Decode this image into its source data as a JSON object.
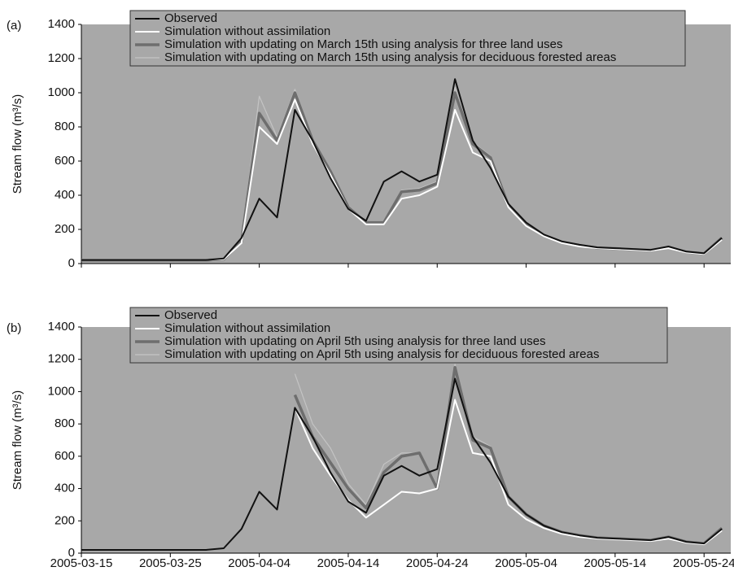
{
  "chart_data": [
    {
      "type": "line",
      "panel_label": "(a)",
      "y_label": "Stream flow (m³/s)",
      "x": [
        "2005-03-15",
        "2005-03-17",
        "2005-03-19",
        "2005-03-21",
        "2005-03-23",
        "2005-03-25",
        "2005-03-27",
        "2005-03-29",
        "2005-03-31",
        "2005-04-02",
        "2005-04-04",
        "2005-04-06",
        "2005-04-08",
        "2005-04-10",
        "2005-04-12",
        "2005-04-14",
        "2005-04-16",
        "2005-04-18",
        "2005-04-20",
        "2005-04-22",
        "2005-04-24",
        "2005-04-26",
        "2005-04-28",
        "2005-04-30",
        "2005-05-02",
        "2005-05-04",
        "2005-05-06",
        "2005-05-08",
        "2005-05-10",
        "2005-05-12",
        "2005-05-14",
        "2005-05-16",
        "2005-05-18",
        "2005-05-20",
        "2005-05-22",
        "2005-05-24",
        "2005-05-26"
      ],
      "xlim": [
        "2005-03-15",
        "2005-05-27"
      ],
      "xticks": [
        "2005-03-15",
        "2005-03-25",
        "2005-04-04",
        "2005-04-14",
        "2005-04-24",
        "2005-05-04",
        "2005-05-14",
        "2005-05-24"
      ],
      "ylim": [
        0,
        1400
      ],
      "yticks": [
        0,
        200,
        400,
        600,
        800,
        1000,
        1200,
        1400
      ],
      "series": [
        {
          "name": "Observed",
          "color": "#111111",
          "values": [
            20,
            20,
            20,
            20,
            20,
            20,
            20,
            20,
            30,
            150,
            380,
            270,
            900,
            720,
            500,
            320,
            250,
            480,
            540,
            480,
            520,
            1080,
            720,
            560,
            350,
            240,
            170,
            130,
            110,
            95,
            90,
            85,
            80,
            100,
            70,
            60,
            150
          ]
        },
        {
          "name": "Simulation without assimilation",
          "color": "#ffffff",
          "values": [
            20,
            20,
            20,
            20,
            20,
            20,
            20,
            20,
            25,
            120,
            800,
            700,
            960,
            700,
            520,
            320,
            230,
            230,
            380,
            400,
            450,
            900,
            650,
            600,
            330,
            220,
            160,
            120,
            100,
            90,
            85,
            80,
            75,
            90,
            65,
            55,
            140
          ]
        },
        {
          "name": "Simulation with updating on March 15th using analysis for three land uses",
          "color": "#6e6e6e",
          "values": [
            20,
            20,
            20,
            20,
            20,
            20,
            20,
            20,
            25,
            130,
            880,
            720,
            1000,
            720,
            540,
            330,
            240,
            240,
            420,
            430,
            470,
            1000,
            700,
            620,
            340,
            230,
            165,
            125,
            105,
            92,
            88,
            82,
            78,
            95,
            68,
            58,
            150
          ]
        },
        {
          "name": "Simulation with updating on March 15th using analysis for deciduous forested areas",
          "color": "#c4c4c4",
          "values": [
            20,
            20,
            20,
            20,
            20,
            20,
            20,
            20,
            25,
            140,
            980,
            740,
            1020,
            730,
            550,
            340,
            245,
            245,
            430,
            440,
            480,
            1030,
            710,
            630,
            345,
            232,
            168,
            126,
            106,
            93,
            89,
            83,
            79,
            96,
            69,
            59,
            152
          ]
        }
      ]
    },
    {
      "type": "line",
      "panel_label": "(b)",
      "y_label": "Stream flow (m³/s)",
      "x": [
        "2005-03-15",
        "2005-03-17",
        "2005-03-19",
        "2005-03-21",
        "2005-03-23",
        "2005-03-25",
        "2005-03-27",
        "2005-03-29",
        "2005-03-31",
        "2005-04-02",
        "2005-04-04",
        "2005-04-06",
        "2005-04-08",
        "2005-04-10",
        "2005-04-12",
        "2005-04-14",
        "2005-04-16",
        "2005-04-18",
        "2005-04-20",
        "2005-04-22",
        "2005-04-24",
        "2005-04-26",
        "2005-04-28",
        "2005-04-30",
        "2005-05-02",
        "2005-05-04",
        "2005-05-06",
        "2005-05-08",
        "2005-05-10",
        "2005-05-12",
        "2005-05-14",
        "2005-05-16",
        "2005-05-18",
        "2005-05-20",
        "2005-05-22",
        "2005-05-24",
        "2005-05-26"
      ],
      "xlim": [
        "2005-03-15",
        "2005-05-27"
      ],
      "xticks": [
        "2005-03-15",
        "2005-03-25",
        "2005-04-04",
        "2005-04-14",
        "2005-04-24",
        "2005-05-04",
        "2005-05-14",
        "2005-05-24"
      ],
      "ylim": [
        0,
        1400
      ],
      "yticks": [
        0,
        200,
        400,
        600,
        800,
        1000,
        1200,
        1400
      ],
      "series": [
        {
          "name": "Observed",
          "color": "#111111",
          "values": [
            20,
            20,
            20,
            20,
            20,
            20,
            20,
            20,
            30,
            150,
            380,
            270,
            900,
            720,
            500,
            320,
            250,
            480,
            540,
            480,
            520,
            1080,
            720,
            560,
            350,
            240,
            170,
            130,
            110,
            95,
            90,
            85,
            80,
            100,
            70,
            60,
            150
          ]
        },
        {
          "name": "Simulation without assimilation",
          "color": "#ffffff",
          "values": [
            null,
            null,
            null,
            null,
            null,
            null,
            null,
            null,
            null,
            null,
            null,
            null,
            900,
            650,
            480,
            330,
            220,
            300,
            380,
            370,
            400,
            950,
            620,
            600,
            300,
            210,
            155,
            120,
            100,
            90,
            85,
            80,
            75,
            90,
            65,
            55,
            140
          ]
        },
        {
          "name": "Simulation with updating on April 5th using analysis for three land uses",
          "color": "#6e6e6e",
          "values": [
            null,
            null,
            null,
            null,
            null,
            null,
            null,
            null,
            null,
            null,
            null,
            null,
            980,
            720,
            560,
            400,
            280,
            500,
            600,
            620,
            400,
            1150,
            700,
            650,
            350,
            240,
            170,
            130,
            110,
            95,
            90,
            85,
            80,
            100,
            70,
            60,
            155
          ]
        },
        {
          "name": "Simulation with updating on April 5th using analysis for deciduous forested areas",
          "color": "#c4c4c4",
          "values": [
            null,
            null,
            null,
            null,
            null,
            null,
            null,
            null,
            null,
            null,
            null,
            null,
            1110,
            800,
            650,
            430,
            300,
            550,
            620,
            620,
            420,
            1170,
            720,
            660,
            360,
            240,
            170,
            130,
            110,
            95,
            90,
            85,
            80,
            100,
            70,
            60,
            155
          ]
        }
      ]
    }
  ]
}
